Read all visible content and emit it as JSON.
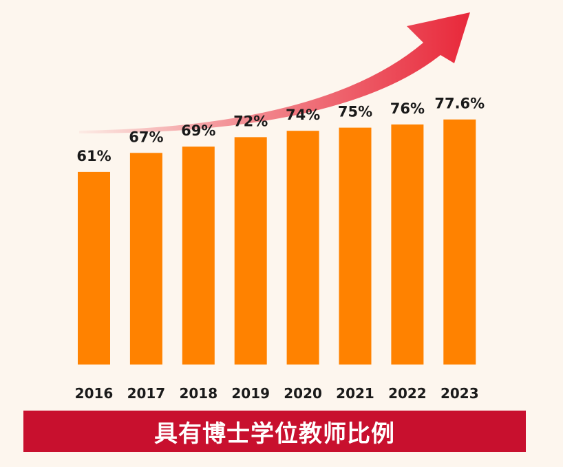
{
  "chart_data": {
    "type": "bar",
    "title": "具有博士学位教师比例",
    "categories": [
      "2016",
      "2017",
      "2018",
      "2019",
      "2020",
      "2021",
      "2022",
      "2023"
    ],
    "values": [
      61,
      67,
      69,
      72,
      74,
      75,
      76,
      77.6
    ],
    "value_labels": [
      "61%",
      "67%",
      "69%",
      "72%",
      "74%",
      "75%",
      "76%",
      "77.6%"
    ],
    "unit": "%",
    "ylim": [
      0,
      100
    ],
    "grid": false,
    "legend": "none",
    "colors": {
      "bar": "#ff8200",
      "banner": "#c8102e",
      "trend_arrow": "#e8283a",
      "background": "#fdf6ee"
    },
    "annotations": [
      {
        "type": "trend-arrow",
        "direction": "up-right"
      }
    ]
  }
}
